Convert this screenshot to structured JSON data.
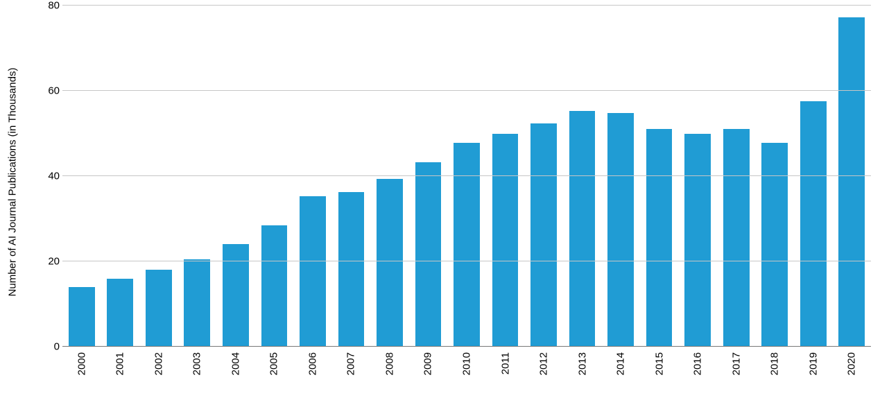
{
  "chart": {
    "type": "bar",
    "ylabel": "Number of AI Journal Publications (in Thousands)",
    "ylabel_fontsize": 15,
    "ylim": [
      0,
      80
    ],
    "ytick_step": 20,
    "yticks": [
      0,
      20,
      40,
      60,
      80
    ],
    "grid_color": "#c6c6c6",
    "baseline_color": "#777777",
    "background_color": "#ffffff",
    "xtick_rotation": -90,
    "xtick_fontsize": 15,
    "ytick_fontsize": 15,
    "bar_color": "#209cd4",
    "bar_width_ratio": 0.68,
    "categories": [
      "2000",
      "2001",
      "2002",
      "2003",
      "2004",
      "2005",
      "2006",
      "2007",
      "2008",
      "2009",
      "2010",
      "2011",
      "2012",
      "2013",
      "2014",
      "2015",
      "2016",
      "2017",
      "2018",
      "2019",
      "2020"
    ],
    "values": [
      14.0,
      16.0,
      18.0,
      20.5,
      24.0,
      28.5,
      35.3,
      36.3,
      39.3,
      43.3,
      47.8,
      50.0,
      52.3,
      55.3,
      54.8,
      51.0,
      50.0,
      51.0,
      47.8,
      57.5,
      77.2
    ]
  }
}
